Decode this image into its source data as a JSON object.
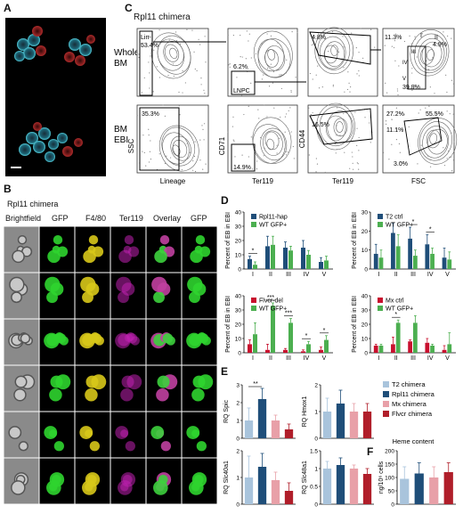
{
  "panel_letters": {
    "a": "A",
    "b": "B",
    "c": "C",
    "d": "D",
    "e": "E",
    "f": "F"
  },
  "panel_c": {
    "title": "Rpl11 chimera",
    "row_labels": [
      [
        "Whole",
        "BM"
      ],
      [
        "BM",
        "EBI"
      ]
    ],
    "x_axis_labels": [
      "Lineage",
      "Ter119",
      "Ter119",
      "FSC"
    ],
    "y_axis_labels": [
      "SSC",
      "CD71",
      "CD44"
    ],
    "gates": {
      "lin": "Lin-\n53.4%",
      "lnpc_pct": "6.2%",
      "lnpc": "LNPC",
      "ebi_p1": "35.3%",
      "ebi_p2": "14.9%",
      "wb_p3": "4.8%",
      "ebi_p3": "16.5%",
      "wb_i": "I",
      "wb_11": "11.3%",
      "wb_ii": "II",
      "wb_49": "4.9%",
      "wb_iii": "III",
      "wb_iv": "IV",
      "wb_v": "V",
      "wb_399": "39.9%",
      "ebi_272": "27.2%",
      "ebi_555": "55.5%",
      "ebi_111": "11.1%",
      "ebi_30": "3.0%"
    }
  },
  "panel_b": {
    "title": "Rpl11 chimera",
    "columns": [
      "Brightfield",
      "GFP",
      "F4/80",
      "Ter119",
      "Overlay",
      "GFP"
    ]
  },
  "panel_d": {
    "ylabel": "Percent of EB in EBI",
    "categories": [
      "I",
      "II",
      "III",
      "IV",
      "V"
    ],
    "charts": [
      {
        "legend": [
          "Rpl11-hap",
          "WT GFP+"
        ],
        "colors": [
          "#1f4e79",
          "#4caf50"
        ]
      },
      {
        "legend": [
          "T2 ctrl",
          "WT GFP+"
        ],
        "colors": [
          "#1f4e79",
          "#4caf50"
        ]
      },
      {
        "legend": [
          "Flvcr-del",
          "WT GFP+"
        ],
        "colors": [
          "#c8102e",
          "#4caf50"
        ]
      },
      {
        "legend": [
          "Mx ctrl",
          "WT GFP+"
        ],
        "colors": [
          "#c8102e",
          "#4caf50"
        ]
      }
    ]
  },
  "panel_e": {
    "ylabels": [
      "RQ Spic",
      "RQ Hmox1",
      "RQ Slc40a1",
      "RQ Slc48a1"
    ],
    "legend": [
      "T2 chimera",
      "Rpl11 chimera",
      "Mx chimera",
      "Flvcr chimera"
    ],
    "colors": [
      "#a9c4dc",
      "#1f4e79",
      "#e8a0a8",
      "#b01e2a"
    ],
    "sig": "**"
  },
  "panel_f": {
    "title": "Heme content",
    "ylabel": "ng/10⁶ cells"
  },
  "chart_data": [
    {
      "type": "bar",
      "panel": "D1",
      "categories": [
        "I",
        "II",
        "III",
        "IV",
        "V"
      ],
      "ylim": [
        0,
        40
      ],
      "yticks": [
        0,
        10,
        20,
        30,
        40
      ],
      "series": [
        {
          "name": "Rpl11-hap",
          "values": [
            7,
            16,
            15,
            15,
            5
          ]
        },
        {
          "name": "WT GFP+",
          "values": [
            3,
            17,
            13,
            10,
            6
          ]
        }
      ],
      "errors": [
        [
          2,
          7,
          4,
          5,
          3
        ],
        [
          2,
          6,
          3,
          3,
          3
        ]
      ],
      "sig": [
        {
          "cat": 0,
          "text": "*"
        }
      ]
    },
    {
      "type": "bar",
      "panel": "D2",
      "categories": [
        "I",
        "II",
        "III",
        "IV",
        "V"
      ],
      "ylim": [
        0,
        30
      ],
      "yticks": [
        0,
        10,
        20,
        30
      ],
      "series": [
        {
          "name": "T2 ctrl",
          "values": [
            8,
            19,
            16,
            13,
            6
          ]
        },
        {
          "name": "WT GFP+",
          "values": [
            6,
            12,
            7,
            8,
            5
          ]
        }
      ],
      "errors": [
        [
          5,
          5,
          6,
          5,
          5
        ],
        [
          4,
          6,
          3,
          3,
          4
        ]
      ],
      "sig": [
        {
          "cat": 2,
          "text": "*"
        },
        {
          "cat": 3,
          "text": "*"
        }
      ]
    },
    {
      "type": "bar",
      "panel": "D3",
      "categories": [
        "I",
        "II",
        "III",
        "IV",
        "V"
      ],
      "ylim": [
        0,
        40
      ],
      "yticks": [
        0,
        10,
        20,
        30,
        40
      ],
      "series": [
        {
          "name": "Flvcr-del",
          "values": [
            6,
            2,
            2,
            1,
            2
          ]
        },
        {
          "name": "WT GFP+",
          "values": [
            13,
            33,
            21,
            6,
            9
          ]
        }
      ],
      "errors": [
        [
          3,
          4,
          1,
          1,
          2
        ],
        [
          8,
          2,
          3,
          2,
          3
        ]
      ],
      "sig": [
        {
          "cat": 1,
          "text": "***"
        },
        {
          "cat": 2,
          "text": "***"
        },
        {
          "cat": 3,
          "text": "*"
        },
        {
          "cat": 4,
          "text": "*"
        }
      ]
    },
    {
      "type": "bar",
      "panel": "D4",
      "categories": [
        "I",
        "II",
        "III",
        "IV",
        "V"
      ],
      "ylim": [
        0,
        40
      ],
      "yticks": [
        0,
        10,
        20,
        30,
        40
      ],
      "series": [
        {
          "name": "Mx ctrl",
          "values": [
            5,
            6,
            8,
            7,
            2
          ]
        },
        {
          "name": "WT GFP+",
          "values": [
            5,
            21,
            21,
            5,
            6
          ]
        }
      ],
      "errors": [
        [
          1,
          5,
          1,
          3,
          3
        ],
        [
          1,
          2,
          5,
          1,
          8
        ]
      ],
      "sig": [
        {
          "cat": 1,
          "text": "*"
        }
      ]
    },
    {
      "type": "bar",
      "panel": "E1",
      "ylabel": "RQ Spic",
      "ylim": [
        0,
        3
      ],
      "yticks": [
        0,
        1,
        2,
        3
      ],
      "values": [
        1.0,
        2.2,
        1.0,
        0.5
      ],
      "errors": [
        0.7,
        0.6,
        0.3,
        0.3
      ]
    },
    {
      "type": "bar",
      "panel": "E2",
      "ylabel": "RQ Hmox1",
      "ylim": [
        0,
        2
      ],
      "yticks": [
        0,
        1,
        2
      ],
      "values": [
        1.0,
        1.3,
        1.0,
        1.0
      ],
      "errors": [
        0.5,
        0.5,
        0.3,
        0.3
      ]
    },
    {
      "type": "bar",
      "panel": "E3",
      "ylabel": "RQ Slc40a1",
      "ylim": [
        0,
        2
      ],
      "yticks": [
        0,
        1,
        2
      ],
      "values": [
        1.0,
        1.4,
        0.9,
        0.5
      ],
      "errors": [
        0.8,
        0.5,
        0.3,
        0.3
      ]
    },
    {
      "type": "bar",
      "panel": "E4",
      "ylabel": "RQ Slc48a1",
      "ylim": [
        0,
        1.5
      ],
      "yticks": [
        0,
        0.5,
        1.0,
        1.5
      ],
      "values": [
        1.0,
        1.1,
        1.0,
        0.85
      ],
      "errors": [
        0.2,
        0.2,
        0.1,
        0.15
      ]
    },
    {
      "type": "bar",
      "panel": "F",
      "title": "Heme content",
      "ylabel": "ng/10⁶ cells",
      "ylim": [
        0,
        200
      ],
      "yticks": [
        0,
        50,
        100,
        150,
        200
      ],
      "values": [
        95,
        115,
        100,
        120
      ],
      "errors": [
        45,
        40,
        40,
        35
      ]
    }
  ]
}
